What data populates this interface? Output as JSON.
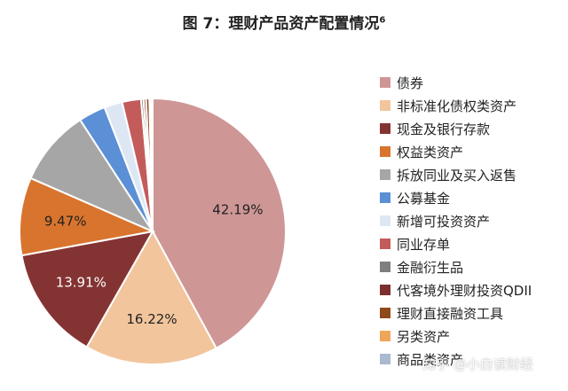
{
  "chart_data": {
    "type": "pie",
    "title": "图 7：理财产品资产配置情况",
    "title_footnote": "6",
    "slices": [
      {
        "label": "债券",
        "value": 42.19,
        "color": "#cf9696",
        "data_label": "42.19%"
      },
      {
        "label": "非标准化债权类资产",
        "value": 16.22,
        "color": "#f2c59d",
        "data_label": "16.22%"
      },
      {
        "label": "现金及银行存款",
        "value": 13.91,
        "color": "#843333",
        "data_label": "13.91%"
      },
      {
        "label": "权益类资产",
        "value": 9.47,
        "color": "#d9742e",
        "data_label": "9.47%"
      },
      {
        "label": "拆放同业及买入返售",
        "value": 9.3,
        "color": "#a6a6a6",
        "data_label": ""
      },
      {
        "label": "公募基金",
        "value": 3.3,
        "color": "#5b8fd6",
        "data_label": ""
      },
      {
        "label": "新增可投资资产",
        "value": 2.2,
        "color": "#dde7f4",
        "data_label": ""
      },
      {
        "label": "同业存单",
        "value": 2.3,
        "color": "#c45b5b",
        "data_label": ""
      },
      {
        "label": "金融衍生品",
        "value": 0.3,
        "color": "#7f7f7f",
        "data_label": ""
      },
      {
        "label": "代客境外理财投资QDII",
        "value": 0.3,
        "color": "#7d2f2f",
        "data_label": ""
      },
      {
        "label": "理财直接融资工具",
        "value": 0.4,
        "color": "#8e4a1b",
        "data_label": ""
      },
      {
        "label": "另类资产",
        "value": 0.2,
        "color": "#f0a55c",
        "data_label": ""
      },
      {
        "label": "商品类资产",
        "value": 0.2,
        "color": "#aab8d0",
        "data_label": ""
      }
    ],
    "start_angle_deg": 0,
    "direction": "clockwise",
    "legend_position": "right"
  },
  "watermark": "知乎 @小白读财经"
}
